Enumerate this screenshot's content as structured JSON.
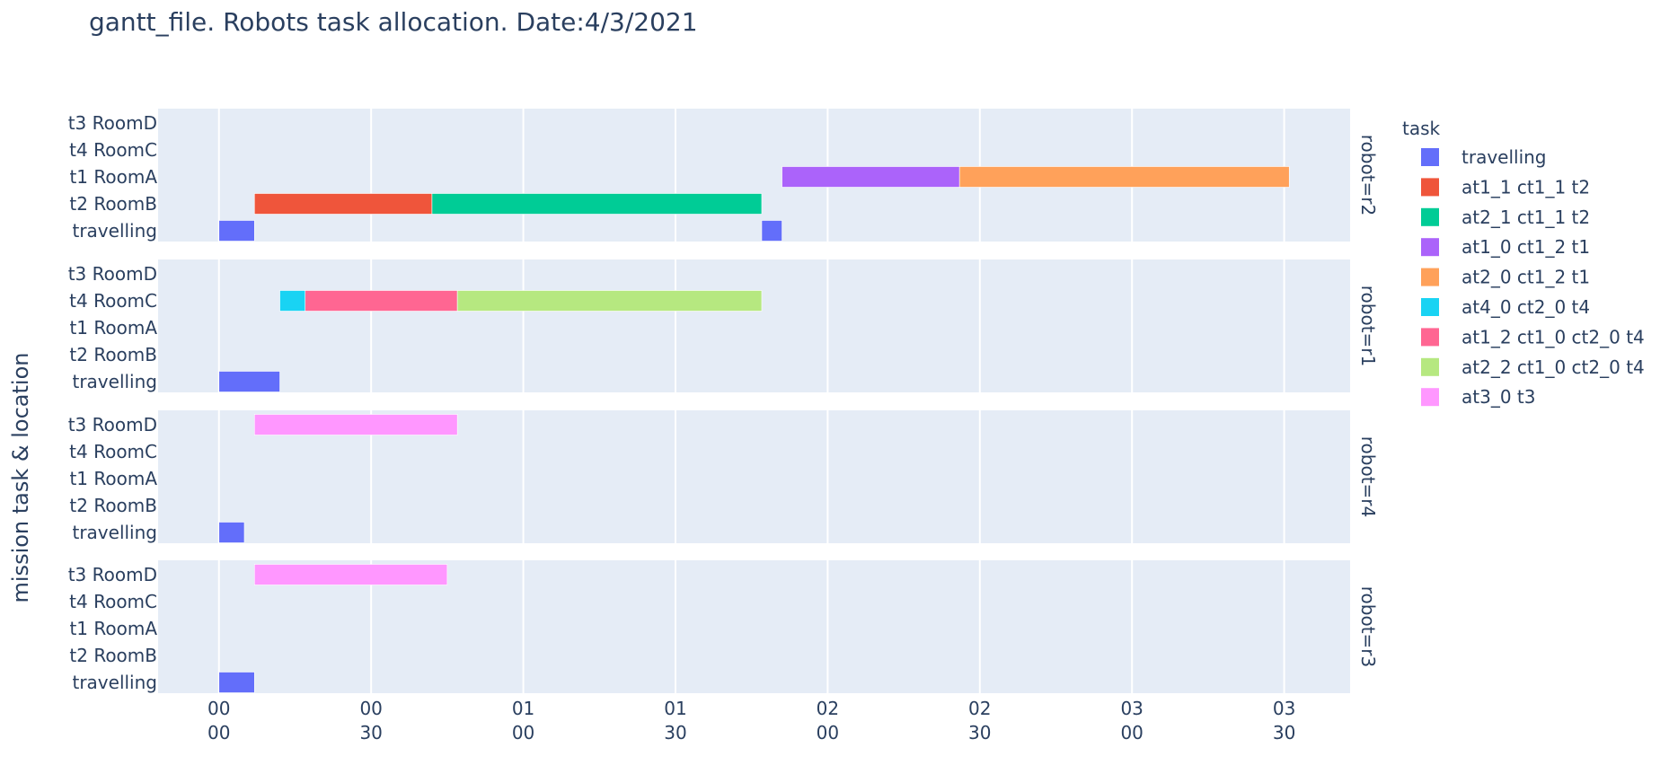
{
  "chart_data": {
    "type": "gantt",
    "title": "gantt_file. Robots task allocation. Date:4/3/2021",
    "ylabel": "mission task & location",
    "legend_title": "task",
    "x_unit": "minutes",
    "xlim": [
      -12,
      223
    ],
    "x_ticks": [
      {
        "value": 0,
        "line1": "00",
        "line2": "00"
      },
      {
        "value": 30,
        "line1": "00",
        "line2": "30"
      },
      {
        "value": 60,
        "line1": "01",
        "line2": "00"
      },
      {
        "value": 90,
        "line1": "01",
        "line2": "30"
      },
      {
        "value": 120,
        "line1": "02",
        "line2": "00"
      },
      {
        "value": 150,
        "line1": "02",
        "line2": "30"
      },
      {
        "value": 180,
        "line1": "03",
        "line2": "00"
      },
      {
        "value": 210,
        "line1": "03",
        "line2": "30"
      }
    ],
    "categories": [
      "t3 RoomD",
      "t4 RoomC",
      "t1 RoomA",
      "t2 RoomB",
      "travelling"
    ],
    "series": [
      {
        "name": "travelling",
        "color": "#636efa"
      },
      {
        "name": "at1_1 ct1_1 t2",
        "color": "#ef553b"
      },
      {
        "name": "at2_1 ct1_1 t2",
        "color": "#00cc96"
      },
      {
        "name": "at1_0 ct1_2 t1",
        "color": "#ab63fa"
      },
      {
        "name": "at2_0 ct1_2 t1",
        "color": "#ffa15a"
      },
      {
        "name": "at4_0 ct2_0 t4",
        "color": "#19d3f3"
      },
      {
        "name": "at1_2 ct1_0 ct2_0 t4",
        "color": "#ff6692"
      },
      {
        "name": "at2_2 ct1_0 ct2_0 t4",
        "color": "#b6e880"
      },
      {
        "name": "at3_0 t3",
        "color": "#ff97ff"
      }
    ],
    "facets": [
      {
        "label": "robot=r2",
        "tasks": [
          {
            "task": "travelling",
            "row": "travelling",
            "start": 0,
            "end": 7
          },
          {
            "task": "at1_1 ct1_1 t2",
            "row": "t2 RoomB",
            "start": 7,
            "end": 42
          },
          {
            "task": "at2_1 ct1_1 t2",
            "row": "t2 RoomB",
            "start": 42,
            "end": 107
          },
          {
            "task": "travelling",
            "row": "travelling",
            "start": 107,
            "end": 111
          },
          {
            "task": "at1_0 ct1_2 t1",
            "row": "t1 RoomA",
            "start": 111,
            "end": 146
          },
          {
            "task": "at2_0 ct1_2 t1",
            "row": "t1 RoomA",
            "start": 146,
            "end": 211
          }
        ]
      },
      {
        "label": "robot=r1",
        "tasks": [
          {
            "task": "travelling",
            "row": "travelling",
            "start": 0,
            "end": 12
          },
          {
            "task": "at4_0 ct2_0 t4",
            "row": "t4 RoomC",
            "start": 12,
            "end": 17
          },
          {
            "task": "at1_2 ct1_0 ct2_0 t4",
            "row": "t4 RoomC",
            "start": 17,
            "end": 47
          },
          {
            "task": "at2_2 ct1_0 ct2_0 t4",
            "row": "t4 RoomC",
            "start": 47,
            "end": 107
          }
        ]
      },
      {
        "label": "robot=r4",
        "tasks": [
          {
            "task": "travelling",
            "row": "travelling",
            "start": 0,
            "end": 5
          },
          {
            "task": "at3_0 t3",
            "row": "t3 RoomD",
            "start": 7,
            "end": 47
          }
        ]
      },
      {
        "label": "robot=r3",
        "tasks": [
          {
            "task": "travelling",
            "row": "travelling",
            "start": 0,
            "end": 7
          },
          {
            "task": "at3_0 t3",
            "row": "t3 RoomD",
            "start": 7,
            "end": 45
          }
        ]
      }
    ],
    "grid": true,
    "legend_position": "right",
    "colors": {
      "panel_bg": "#e5ecf6",
      "grid": "#ffffff",
      "text": "#2a3f5f"
    }
  }
}
